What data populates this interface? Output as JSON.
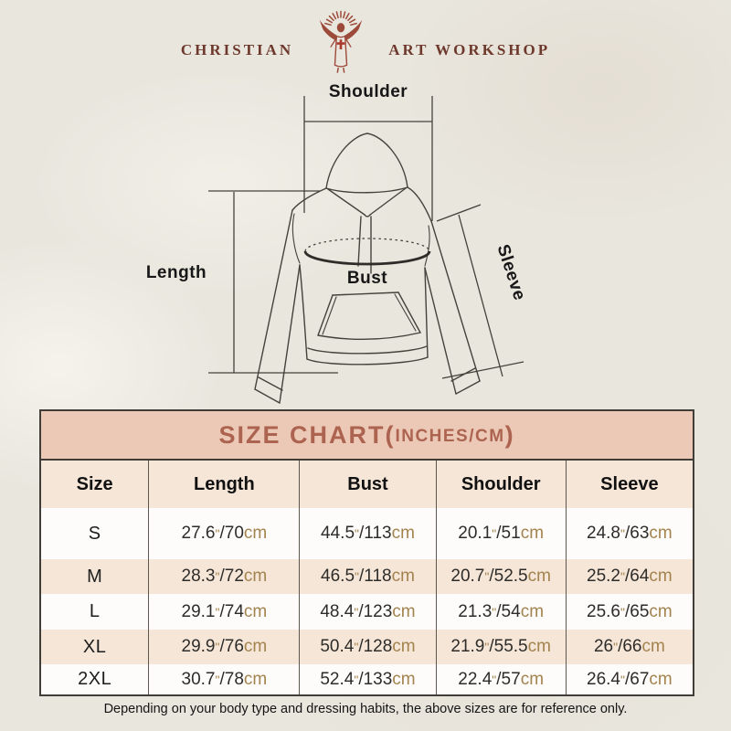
{
  "logo": {
    "left_text": "CHRISTIAN",
    "right_text": "ART WORKSHOP",
    "icon": "jesus-rays-icon",
    "text_color": "#6e392c",
    "icon_color": "#9c4a39"
  },
  "diagram": {
    "shoulder_label": "Shoulder",
    "length_label": "Length",
    "bust_label": "Bust",
    "sleeve_label": "Sleeve"
  },
  "size_chart": {
    "title_main": "SIZE CHART(",
    "title_units": "INCHES/CM",
    "title_close": ")",
    "columns": [
      "Size",
      "Length",
      "Bust",
      "Shoulder",
      "Sleeve"
    ],
    "inch_mark": "\"",
    "slash": "/",
    "cm_unit": "cm",
    "rows": [
      {
        "size": "S",
        "cells": [
          {
            "in": "27.6",
            "cm": "70"
          },
          {
            "in": "44.5",
            "cm": "113"
          },
          {
            "in": "20.1",
            "cm": "51"
          },
          {
            "in": "24.8",
            "cm": "63"
          }
        ]
      },
      {
        "size": "M",
        "cells": [
          {
            "in": "28.3",
            "cm": "72"
          },
          {
            "in": "46.5",
            "cm": "118"
          },
          {
            "in": "20.7",
            "cm": "52.5"
          },
          {
            "in": "25.2",
            "cm": "64"
          }
        ]
      },
      {
        "size": "L",
        "cells": [
          {
            "in": "29.1",
            "cm": "74"
          },
          {
            "in": "48.4",
            "cm": "123"
          },
          {
            "in": "21.3",
            "cm": "54"
          },
          {
            "in": "25.6",
            "cm": "65"
          }
        ]
      },
      {
        "size": "XL",
        "cells": [
          {
            "in": "29.9",
            "cm": "76"
          },
          {
            "in": "50.4",
            "cm": "128"
          },
          {
            "in": "21.9",
            "cm": "55.5"
          },
          {
            "in": "26",
            "cm": "66"
          }
        ]
      },
      {
        "size": "2XL",
        "cells": [
          {
            "in": "30.7",
            "cm": "78"
          },
          {
            "in": "52.4",
            "cm": "133"
          },
          {
            "in": "22.4",
            "cm": "57"
          },
          {
            "in": "26.4",
            "cm": "67"
          }
        ]
      }
    ]
  },
  "footer": {
    "note": "Depending on your body type and dressing habits, the above sizes are for reference only."
  },
  "colors": {
    "page_bg": "#e9e6de",
    "title_band_bg": "#ecc9b6",
    "title_text": "#ac6450",
    "row_shade_bg": "#f5e6d8",
    "row_bg": "#fdfcfa",
    "table_border": "#403c37",
    "unit_text": "#a3834e",
    "line_art": "#45423c"
  }
}
